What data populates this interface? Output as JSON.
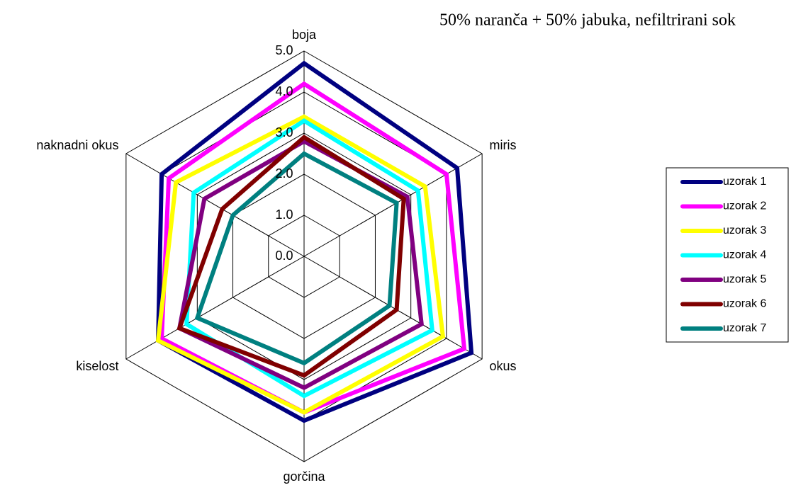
{
  "chart_data": {
    "type": "radar",
    "title": "50% naranča + 50% jabuka, nefiltrirani sok",
    "categories": [
      "boja",
      "miris",
      "okus",
      "gorčina",
      "kiselost",
      "naknadni okus"
    ],
    "ylim": [
      0,
      5
    ],
    "yticks": [
      {
        "value": 0,
        "label": "0.0"
      },
      {
        "value": 1,
        "label": "1.0"
      },
      {
        "value": 2,
        "label": "2.0"
      },
      {
        "value": 3,
        "label": "3.0"
      },
      {
        "value": 4,
        "label": "4.0"
      },
      {
        "value": 5,
        "label": "5.0"
      }
    ],
    "grid": true,
    "legend": "right",
    "series": [
      {
        "name": "uzorak 1",
        "color": "#000080",
        "values": [
          4.7,
          4.3,
          4.7,
          4.0,
          4.1,
          4.0
        ]
      },
      {
        "name": "uzorak 2",
        "color": "#ff00ff",
        "values": [
          4.2,
          4.0,
          4.5,
          3.8,
          4.0,
          3.8
        ]
      },
      {
        "name": "uzorak 3",
        "color": "#ffff00",
        "values": [
          3.4,
          3.4,
          3.9,
          3.8,
          4.1,
          3.6
        ]
      },
      {
        "name": "uzorak 4",
        "color": "#00ffff",
        "values": [
          3.3,
          3.2,
          3.6,
          3.4,
          3.3,
          3.1
        ]
      },
      {
        "name": "uzorak 5",
        "color": "#800080",
        "values": [
          2.8,
          2.9,
          3.3,
          3.2,
          3.5,
          2.8
        ]
      },
      {
        "name": "uzorak 6",
        "color": "#800000",
        "values": [
          2.9,
          2.8,
          2.6,
          2.9,
          3.5,
          2.3
        ]
      },
      {
        "name": "uzorak 7",
        "color": "#008080",
        "values": [
          2.5,
          2.6,
          2.4,
          2.6,
          3.0,
          2.0
        ]
      }
    ]
  }
}
